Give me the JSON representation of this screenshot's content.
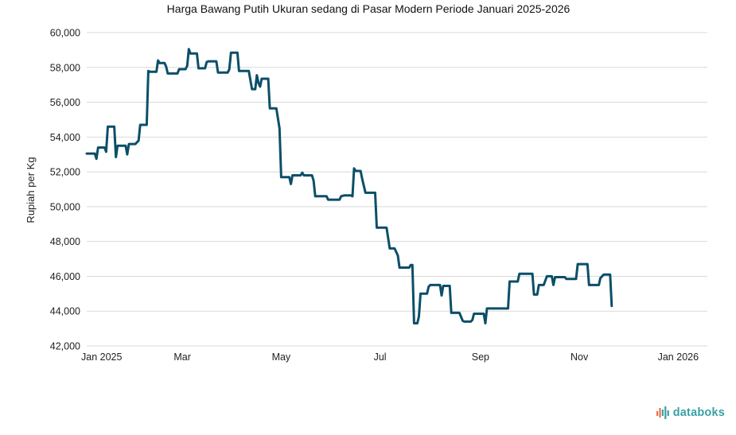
{
  "chart_data": {
    "type": "line",
    "title": "Harga Bawang Putih Ukuran sedang di Pasar Modern Periode Januari 2025-2026",
    "ylabel": "Rupiah per Kg",
    "xlabel": "",
    "ylim": [
      42000,
      60000
    ],
    "yticks": [
      "42,000",
      "44,000",
      "46,000",
      "48,000",
      "50,000",
      "52,000",
      "54,000",
      "56,000",
      "58,000",
      "60,000"
    ],
    "ytick_values": [
      42000,
      44000,
      46000,
      48000,
      50000,
      52000,
      54000,
      56000,
      58000,
      60000
    ],
    "xlim": [
      "2025-01-01",
      "2026-01-19"
    ],
    "xticks": [
      {
        "label": "Jan 2025",
        "date": "2025-01-01"
      },
      {
        "label": "Mar",
        "date": "2025-03-01"
      },
      {
        "label": "May",
        "date": "2025-05-01"
      },
      {
        "label": "Jul",
        "date": "2025-07-01"
      },
      {
        "label": "Sep",
        "date": "2025-09-01"
      },
      {
        "label": "Nov",
        "date": "2025-11-01"
      },
      {
        "label": "Jan 2026",
        "date": "2026-01-01"
      }
    ],
    "grid": true,
    "legend": "none",
    "color": "#0b4f68",
    "series": [
      {
        "points": [
          [
            "2025-01-01",
            53050
          ],
          [
            "2025-01-06",
            53050
          ],
          [
            "2025-01-07",
            52750
          ],
          [
            "2025-01-08",
            53400
          ],
          [
            "2025-01-12",
            53400
          ],
          [
            "2025-01-13",
            53150
          ],
          [
            "2025-01-14",
            54600
          ],
          [
            "2025-01-18",
            54600
          ],
          [
            "2025-01-19",
            52850
          ],
          [
            "2025-01-20",
            53500
          ],
          [
            "2025-01-25",
            53500
          ],
          [
            "2025-01-26",
            53000
          ],
          [
            "2025-01-27",
            53600
          ],
          [
            "2025-01-31",
            53600
          ],
          [
            "2025-02-02",
            53800
          ],
          [
            "2025-02-03",
            54700
          ],
          [
            "2025-02-07",
            54700
          ],
          [
            "2025-02-08",
            57800
          ],
          [
            "2025-02-09",
            57750
          ],
          [
            "2025-02-13",
            57750
          ],
          [
            "2025-02-14",
            58400
          ],
          [
            "2025-02-15",
            58250
          ],
          [
            "2025-02-18",
            58250
          ],
          [
            "2025-02-19",
            58050
          ],
          [
            "2025-02-20",
            57650
          ],
          [
            "2025-02-26",
            57650
          ],
          [
            "2025-02-27",
            57900
          ],
          [
            "2025-03-03",
            57900
          ],
          [
            "2025-03-04",
            58100
          ],
          [
            "2025-03-05",
            59050
          ],
          [
            "2025-03-06",
            58800
          ],
          [
            "2025-03-10",
            58800
          ],
          [
            "2025-03-11",
            57950
          ],
          [
            "2025-03-15",
            57950
          ],
          [
            "2025-03-16",
            58300
          ],
          [
            "2025-03-17",
            58350
          ],
          [
            "2025-03-22",
            58350
          ],
          [
            "2025-03-23",
            57700
          ],
          [
            "2025-03-29",
            57700
          ],
          [
            "2025-03-30",
            57900
          ],
          [
            "2025-03-31",
            58850
          ],
          [
            "2025-04-04",
            58850
          ],
          [
            "2025-04-05",
            57800
          ],
          [
            "2025-04-11",
            57800
          ],
          [
            "2025-04-13",
            56750
          ],
          [
            "2025-04-15",
            56750
          ],
          [
            "2025-04-16",
            57550
          ],
          [
            "2025-04-17",
            57100
          ],
          [
            "2025-04-18",
            56900
          ],
          [
            "2025-04-19",
            57350
          ],
          [
            "2025-04-23",
            57350
          ],
          [
            "2025-04-24",
            55650
          ],
          [
            "2025-04-28",
            55650
          ],
          [
            "2025-04-30",
            54500
          ],
          [
            "2025-05-01",
            51700
          ],
          [
            "2025-05-06",
            51700
          ],
          [
            "2025-05-07",
            51300
          ],
          [
            "2025-05-08",
            51800
          ],
          [
            "2025-05-13",
            51800
          ],
          [
            "2025-05-14",
            51950
          ],
          [
            "2025-05-15",
            51800
          ],
          [
            "2025-05-20",
            51800
          ],
          [
            "2025-05-21",
            51500
          ],
          [
            "2025-05-22",
            50600
          ],
          [
            "2025-05-29",
            50600
          ],
          [
            "2025-05-30",
            50400
          ],
          [
            "2025-06-06",
            50400
          ],
          [
            "2025-06-07",
            50600
          ],
          [
            "2025-06-09",
            50650
          ],
          [
            "2025-06-13",
            50650
          ],
          [
            "2025-06-14",
            50600
          ],
          [
            "2025-06-15",
            52200
          ],
          [
            "2025-06-16",
            52050
          ],
          [
            "2025-06-19",
            52050
          ],
          [
            "2025-06-20",
            51600
          ],
          [
            "2025-06-22",
            50800
          ],
          [
            "2025-06-28",
            50800
          ],
          [
            "2025-06-29",
            48800
          ],
          [
            "2025-07-05",
            48800
          ],
          [
            "2025-07-07",
            47600
          ],
          [
            "2025-07-10",
            47600
          ],
          [
            "2025-07-12",
            47200
          ],
          [
            "2025-07-13",
            46500
          ],
          [
            "2025-07-19",
            46500
          ],
          [
            "2025-07-20",
            46650
          ],
          [
            "2025-07-21",
            46650
          ],
          [
            "2025-07-22",
            43300
          ],
          [
            "2025-07-24",
            43300
          ],
          [
            "2025-07-25",
            43700
          ],
          [
            "2025-07-26",
            45000
          ],
          [
            "2025-07-30",
            45000
          ],
          [
            "2025-07-31",
            45400
          ],
          [
            "2025-08-01",
            45500
          ],
          [
            "2025-08-07",
            45500
          ],
          [
            "2025-08-08",
            44900
          ],
          [
            "2025-08-09",
            45450
          ],
          [
            "2025-08-13",
            45450
          ],
          [
            "2025-08-14",
            43900
          ],
          [
            "2025-08-19",
            43900
          ],
          [
            "2025-08-21",
            43450
          ],
          [
            "2025-08-22",
            43400
          ],
          [
            "2025-08-26",
            43400
          ],
          [
            "2025-08-27",
            43500
          ],
          [
            "2025-08-28",
            43850
          ],
          [
            "2025-09-03",
            43850
          ],
          [
            "2025-09-04",
            43300
          ],
          [
            "2025-09-05",
            44150
          ],
          [
            "2025-09-18",
            44150
          ],
          [
            "2025-09-19",
            45700
          ],
          [
            "2025-09-24",
            45700
          ],
          [
            "2025-09-25",
            46150
          ],
          [
            "2025-10-03",
            46150
          ],
          [
            "2025-10-04",
            44950
          ],
          [
            "2025-10-06",
            44950
          ],
          [
            "2025-10-07",
            45500
          ],
          [
            "2025-10-10",
            45500
          ],
          [
            "2025-10-12",
            46000
          ],
          [
            "2025-10-15",
            46000
          ],
          [
            "2025-10-16",
            45500
          ],
          [
            "2025-10-17",
            45950
          ],
          [
            "2025-10-23",
            45950
          ],
          [
            "2025-10-24",
            45850
          ],
          [
            "2025-10-30",
            45850
          ],
          [
            "2025-10-31",
            46700
          ],
          [
            "2025-11-06",
            46700
          ],
          [
            "2025-11-07",
            45500
          ],
          [
            "2025-11-13",
            45500
          ],
          [
            "2025-11-14",
            45900
          ],
          [
            "2025-11-16",
            46100
          ],
          [
            "2025-11-20",
            46100
          ],
          [
            "2025-11-21",
            44300
          ]
        ]
      }
    ]
  },
  "brand": {
    "name": "databoks",
    "logo_icon": "databoks-bars-icon",
    "color": "#3aa0a4",
    "accent": "#e8704a"
  }
}
